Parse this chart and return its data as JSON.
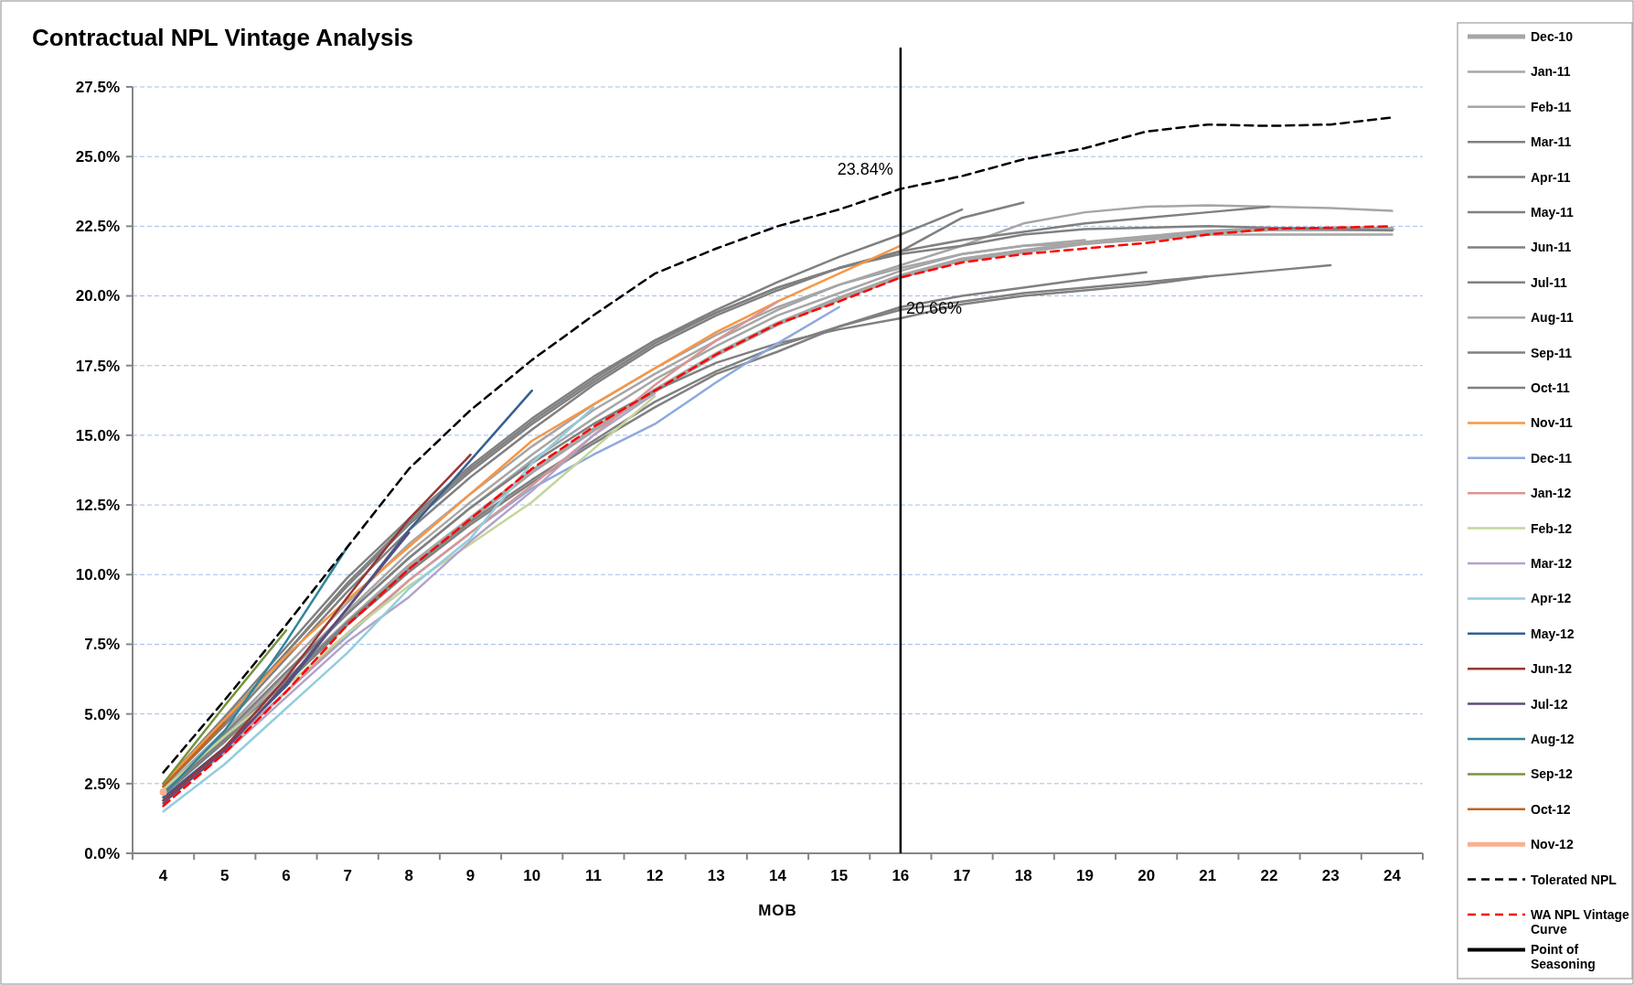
{
  "chart_data": {
    "type": "line",
    "title": "Contractual NPL Vintage Analysis",
    "xlabel": "MOB",
    "categories": [
      "4",
      "5",
      "6",
      "7",
      "8",
      "9",
      "10",
      "11",
      "12",
      "13",
      "14",
      "15",
      "16",
      "17",
      "18",
      "19",
      "20",
      "21",
      "22",
      "23",
      "24"
    ],
    "ylim": [
      0,
      27.5
    ],
    "yticks": [
      {
        "value": 0,
        "label": "0.0%"
      },
      {
        "value": 2.5,
        "label": "2.5%"
      },
      {
        "value": 5,
        "label": "5.0%"
      },
      {
        "value": 7.5,
        "label": "7.5%"
      },
      {
        "value": 10,
        "label": "10.0%"
      },
      {
        "value": 12.5,
        "label": "12.5%"
      },
      {
        "value": 15,
        "label": "15.0%"
      },
      {
        "value": 17.5,
        "label": "17.5%"
      },
      {
        "value": 20,
        "label": "20.0%"
      },
      {
        "value": 22.5,
        "label": "22.5%"
      },
      {
        "value": 25,
        "label": "25.0%"
      },
      {
        "value": 27.5,
        "label": "27.5%"
      }
    ],
    "grid": "y",
    "legend": "right",
    "line_style": "solid",
    "series": [
      {
        "name": "Dec-10",
        "color": "#a6a6a6",
        "values": [
          2.2,
          4.1,
          6.2,
          8.3,
          10.3,
          12.0,
          13.7,
          15.2,
          16.6,
          17.9,
          19.0,
          19.9,
          20.7,
          21.3,
          21.6,
          21.9,
          22.1,
          22.3,
          22.4,
          22.4,
          22.4
        ]
      },
      {
        "name": "Jan-11",
        "color": "#a6a6a6",
        "values": [
          2.3,
          4.3,
          6.5,
          8.7,
          10.8,
          12.6,
          14.3,
          15.9,
          17.2,
          18.4,
          19.5,
          20.4,
          21.1,
          21.8,
          22.6,
          23.0,
          23.2,
          23.25,
          23.2,
          23.15,
          23.05
        ]
      },
      {
        "name": "Feb-11",
        "color": "#a6a6a6",
        "values": [
          2.2,
          4.2,
          6.4,
          8.6,
          10.6,
          12.4,
          14.1,
          15.6,
          17.0,
          18.2,
          19.3,
          20.1,
          20.9,
          21.5,
          21.8,
          21.9,
          22.0,
          22.2,
          22.2,
          22.2,
          22.2
        ]
      },
      {
        "name": "Mar-11",
        "color": "#808080",
        "values": [
          2.4,
          4.6,
          7.0,
          9.4,
          11.6,
          13.5,
          15.2,
          16.8,
          18.2,
          19.3,
          20.2,
          21.0,
          21.5,
          21.8,
          22.2,
          22.4,
          22.45,
          22.5,
          22.45,
          22.4,
          22.35
        ]
      },
      {
        "name": "Apr-11",
        "color": "#808080",
        "values": [
          2.3,
          4.3,
          6.5,
          8.6,
          10.6,
          12.4,
          14.0,
          15.4,
          16.6,
          17.6,
          18.3,
          18.8,
          19.2,
          19.7,
          20.0,
          20.2,
          20.4,
          20.7,
          20.9,
          21.1,
          null
        ]
      },
      {
        "name": "May-11",
        "color": "#808080",
        "values": [
          2.5,
          4.8,
          7.2,
          9.6,
          11.8,
          13.7,
          15.4,
          16.9,
          18.3,
          19.4,
          20.3,
          21.0,
          21.6,
          22.0,
          22.3,
          22.6,
          22.8,
          23.0,
          23.2,
          null,
          null
        ]
      },
      {
        "name": "Jun-11",
        "color": "#808080",
        "values": [
          2.2,
          4.1,
          6.2,
          8.3,
          10.2,
          11.9,
          13.4,
          14.8,
          16.2,
          17.3,
          18.2,
          18.9,
          19.5,
          19.8,
          20.1,
          20.3,
          20.5,
          20.7,
          null,
          null,
          null
        ]
      },
      {
        "name": "Jul-11",
        "color": "#808080",
        "values": [
          2.1,
          4.0,
          6.1,
          8.2,
          10.1,
          11.8,
          13.3,
          14.7,
          16.0,
          17.2,
          18.0,
          18.9,
          19.6,
          20.0,
          20.3,
          20.6,
          20.85,
          null,
          null,
          null,
          null
        ]
      },
      {
        "name": "Aug-11",
        "color": "#a6a6a6",
        "values": [
          2.3,
          4.4,
          6.7,
          9.0,
          11.1,
          12.9,
          14.6,
          16.1,
          17.4,
          18.6,
          19.6,
          20.4,
          21.0,
          21.5,
          21.8,
          22.0,
          null,
          null,
          null,
          null,
          null
        ]
      },
      {
        "name": "Sep-11",
        "color": "#808080",
        "values": [
          2.4,
          4.7,
          7.2,
          9.7,
          11.9,
          13.8,
          15.5,
          17.0,
          18.4,
          19.4,
          20.3,
          21.0,
          21.6,
          22.8,
          23.35,
          null,
          null,
          null,
          null,
          null,
          null
        ]
      },
      {
        "name": "Oct-11",
        "color": "#808080",
        "values": [
          2.5,
          4.9,
          7.4,
          9.9,
          12.0,
          13.9,
          15.6,
          17.1,
          18.4,
          19.5,
          20.5,
          21.4,
          22.2,
          23.1,
          null,
          null,
          null,
          null,
          null,
          null,
          null
        ]
      },
      {
        "name": "Nov-11",
        "color": "#f79646",
        "values": [
          2.5,
          4.8,
          7.1,
          9.1,
          11.0,
          12.9,
          14.8,
          16.1,
          17.4,
          18.7,
          19.8,
          20.8,
          21.8,
          null,
          null,
          null,
          null,
          null,
          null,
          null,
          null
        ]
      },
      {
        "name": "Dec-11",
        "color": "#8eaadb",
        "values": [
          2.0,
          3.8,
          5.8,
          7.8,
          9.8,
          11.5,
          13.1,
          14.3,
          15.4,
          16.9,
          18.3,
          19.6,
          null,
          null,
          null,
          null,
          null,
          null,
          null,
          null,
          null
        ]
      },
      {
        "name": "Jan-12",
        "color": "#d99694",
        "values": [
          1.9,
          3.7,
          5.8,
          7.9,
          9.8,
          11.5,
          13.2,
          15.0,
          16.8,
          18.4,
          19.8,
          null,
          null,
          null,
          null,
          null,
          null,
          null,
          null,
          null,
          null
        ]
      },
      {
        "name": "Feb-12",
        "color": "#c3d69b",
        "values": [
          2.3,
          4.2,
          6.0,
          7.9,
          9.6,
          11.1,
          12.6,
          14.5,
          16.4,
          null,
          null,
          null,
          null,
          null,
          null,
          null,
          null,
          null,
          null,
          null,
          null
        ]
      },
      {
        "name": "Mar-12",
        "color": "#b3a2c7",
        "values": [
          1.9,
          3.6,
          5.6,
          7.6,
          9.2,
          11.2,
          13.0,
          15.0,
          16.5,
          null,
          null,
          null,
          null,
          null,
          null,
          null,
          null,
          null,
          null,
          null,
          null
        ]
      },
      {
        "name": "Apr-12",
        "color": "#93cddd",
        "values": [
          1.5,
          3.2,
          5.2,
          7.2,
          9.5,
          11.3,
          14.0,
          16.0,
          null,
          null,
          null,
          null,
          null,
          null,
          null,
          null,
          null,
          null,
          null,
          null,
          null
        ]
      },
      {
        "name": "May-12",
        "color": "#376092",
        "values": [
          2.0,
          3.8,
          6.0,
          8.8,
          11.6,
          14.1,
          16.6,
          null,
          null,
          null,
          null,
          null,
          null,
          null,
          null,
          null,
          null,
          null,
          null,
          null,
          null
        ]
      },
      {
        "name": "Jun-12",
        "color": "#953735",
        "values": [
          1.9,
          3.8,
          6.3,
          9.2,
          12.0,
          14.3,
          null,
          null,
          null,
          null,
          null,
          null,
          null,
          null,
          null,
          null,
          null,
          null,
          null,
          null,
          null
        ]
      },
      {
        "name": "Jul-12",
        "color": "#604a7b",
        "values": [
          1.8,
          3.7,
          6.1,
          8.8,
          11.5,
          null,
          null,
          null,
          null,
          null,
          null,
          null,
          null,
          null,
          null,
          null,
          null,
          null,
          null,
          null,
          null
        ]
      },
      {
        "name": "Aug-12",
        "color": "#31859c",
        "values": [
          2.1,
          4.4,
          7.6,
          11.0,
          null,
          null,
          null,
          null,
          null,
          null,
          null,
          null,
          null,
          null,
          null,
          null,
          null,
          null,
          null,
          null,
          null
        ]
      },
      {
        "name": "Sep-12",
        "color": "#77933c",
        "values": [
          2.5,
          5.3,
          8.0,
          null,
          null,
          null,
          null,
          null,
          null,
          null,
          null,
          null,
          null,
          null,
          null,
          null,
          null,
          null,
          null,
          null,
          null
        ]
      },
      {
        "name": "Oct-12",
        "color": "#c0651f",
        "values": [
          2.4,
          4.7,
          null,
          null,
          null,
          null,
          null,
          null,
          null,
          null,
          null,
          null,
          null,
          null,
          null,
          null,
          null,
          null,
          null,
          null,
          null
        ]
      },
      {
        "name": "Nov-12",
        "color": "#fab08f",
        "marker": "circle",
        "values": [
          2.2,
          null,
          null,
          null,
          null,
          null,
          null,
          null,
          null,
          null,
          null,
          null,
          null,
          null,
          null,
          null,
          null,
          null,
          null,
          null,
          null
        ]
      },
      {
        "name": "Tolerated NPL",
        "color": "#000000",
        "line_style": "dashed",
        "values": [
          2.9,
          5.5,
          8.2,
          11.0,
          13.8,
          15.9,
          17.7,
          19.3,
          20.8,
          21.7,
          22.5,
          23.1,
          23.84,
          24.3,
          24.9,
          25.3,
          25.9,
          26.15,
          26.1,
          26.15,
          26.4
        ]
      },
      {
        "name": "WA NPL Vintage Curve",
        "color": "#ff0000",
        "line_style": "dashed",
        "values": [
          1.7,
          3.6,
          5.8,
          8.2,
          10.2,
          12.0,
          13.8,
          15.3,
          16.6,
          17.9,
          19.0,
          19.8,
          20.66,
          21.2,
          21.5,
          21.7,
          21.9,
          22.2,
          22.4,
          22.45,
          22.5
        ]
      }
    ],
    "ref_lines": [
      {
        "axis": "x",
        "value": "16",
        "label": "Point of Seasoning",
        "color": "#000000",
        "line_style": "solid"
      }
    ],
    "annotations": [
      {
        "text": "23.84%",
        "x": "16",
        "y": 23.84
      },
      {
        "text": "20.66%",
        "x": "16",
        "y": 20.66
      }
    ]
  }
}
